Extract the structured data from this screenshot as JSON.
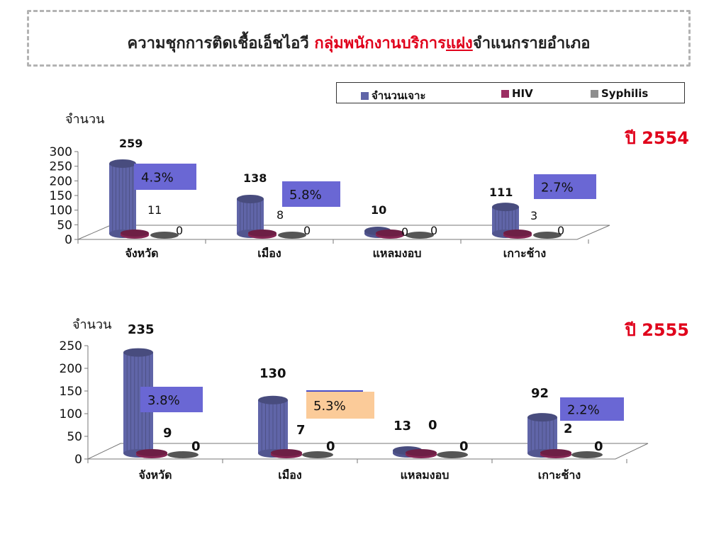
{
  "title": {
    "part1": "ความชุกการติดเชื้อเอ็ชไอวี ",
    "part2a": "กลุ่มพนักงานบริการ",
    "part2b": "แฝง",
    "part3": "จำแนกรายอำเภอ"
  },
  "legend": [
    {
      "name": "จำนวนเจาะ",
      "color": "#6065a8"
    },
    {
      "name": "HIV",
      "color": "#9b2d62"
    },
    {
      "name": "Syphilis",
      "color": "#8e8e8e"
    }
  ],
  "chart_data": [
    {
      "type": "bar",
      "title": "ปี  2554",
      "ylabel": "จำนวน",
      "ylim": [
        0,
        300
      ],
      "yticks": [
        0,
        50,
        100,
        150,
        200,
        250,
        300
      ],
      "categories": [
        "จังหวัด",
        "เมือง",
        "แหลมงอบ",
        "เกาะช้าง"
      ],
      "series": [
        {
          "name": "จำนวนเจาะ",
          "values": [
            259,
            138,
            10,
            111
          ],
          "labels": [
            "259",
            "138",
            "10",
            "111"
          ]
        },
        {
          "name": "HIV",
          "values": [
            11,
            8,
            0,
            3
          ],
          "labels": [
            "11",
            "8",
            "0",
            "3"
          ]
        },
        {
          "name": "Syphilis",
          "values": [
            0,
            0,
            0,
            0
          ],
          "labels": [
            "0",
            "0",
            "0",
            "0"
          ]
        }
      ],
      "annotations": [
        "4.3%",
        "5.8%",
        "",
        "2.7%"
      ],
      "annotation_colors": [
        "#6a67d4",
        "#6a67d4",
        "",
        "#6a67d4"
      ]
    },
    {
      "type": "bar",
      "title": "ปี  2555",
      "ylabel": "จำนวน",
      "ylim": [
        0,
        250
      ],
      "yticks": [
        0,
        50,
        100,
        150,
        200,
        250
      ],
      "categories": [
        "จังหวัด",
        "เมือง",
        "แหลมงอบ",
        "เกาะช้าง"
      ],
      "series": [
        {
          "name": "จำนวนเจาะ",
          "values": [
            235,
            130,
            13,
            92
          ],
          "labels": [
            "235",
            "130",
            "13",
            "92"
          ]
        },
        {
          "name": "HIV",
          "values": [
            9,
            7,
            0,
            2
          ],
          "labels": [
            "9",
            "7",
            "0",
            "2"
          ]
        },
        {
          "name": "Syphilis",
          "values": [
            0,
            0,
            0,
            0
          ],
          "labels": [
            "0",
            "0",
            "0",
            "0"
          ]
        }
      ],
      "annotations": [
        "3.8%",
        "5.3%",
        "",
        "2.2%"
      ],
      "annotation_colors": [
        "#6a67d4",
        "#fbcb99",
        "",
        "#6a67d4"
      ]
    }
  ]
}
